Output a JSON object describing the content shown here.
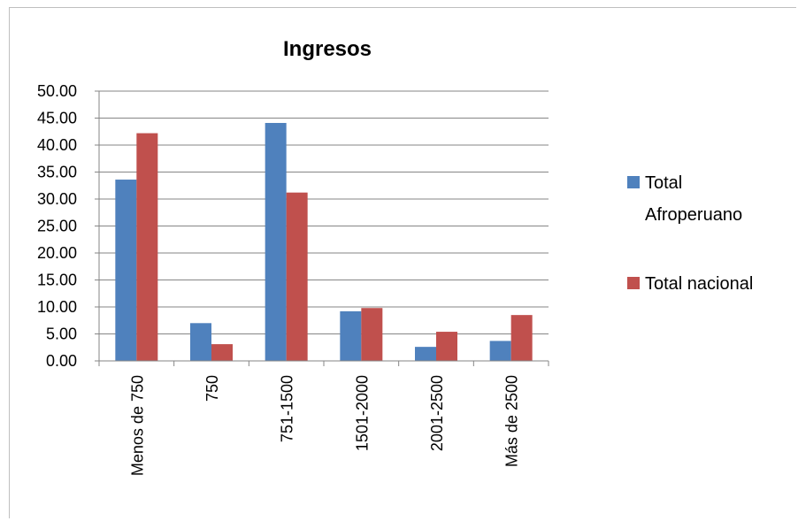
{
  "chart_data": {
    "type": "bar",
    "title": "Ingresos",
    "categories": [
      "Menos de 750",
      "750",
      "751-1500",
      "1501-2000",
      "2001-2500",
      "Más de 2500"
    ],
    "series": [
      {
        "name": "Total Afroperuano",
        "values": [
          33.6,
          7.0,
          44.1,
          9.2,
          2.6,
          3.7
        ],
        "color": "#4f81bd"
      },
      {
        "name": "Total nacional",
        "values": [
          42.2,
          3.1,
          31.2,
          9.8,
          5.4,
          8.5
        ],
        "color": "#c0504d"
      }
    ],
    "ylim": [
      0,
      50
    ],
    "yticks": [
      "0.00",
      "5.00",
      "10.00",
      "15.00",
      "20.00",
      "25.00",
      "30.00",
      "35.00",
      "40.00",
      "45.00",
      "50.00"
    ],
    "grid": true,
    "legend_position": "right"
  }
}
